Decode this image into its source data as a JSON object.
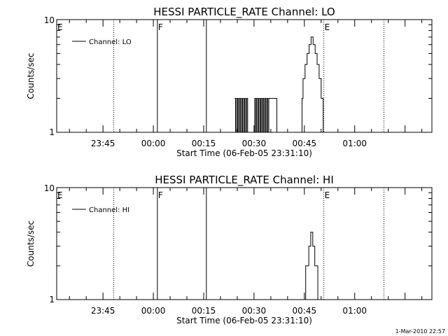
{
  "timestamp": "1-Mar-2010 22:57",
  "chart_data": [
    {
      "type": "line",
      "title": "HESSI PARTICLE_RATE Channel: LO",
      "xlabel": "Start Time (06-Feb-05 23:31:10)",
      "ylabel": "Counts/sec",
      "y_scale": "log",
      "ylim": [
        1,
        10
      ],
      "ytick_labels": [
        "1",
        "10"
      ],
      "xlim_minutes": [
        -28.8,
        83
      ],
      "xtick_labels": [
        "23:45",
        "00:00",
        "00:15",
        "00:30",
        "00:45",
        "01:00"
      ],
      "xtick_minutes": [
        -15,
        0,
        15,
        30,
        45,
        60
      ],
      "legend": {
        "label": "Channel: LO",
        "position": "top-left"
      },
      "markers": [
        {
          "label": "E",
          "minute": -28.8,
          "style": "dotted"
        },
        {
          "label": "",
          "minute": -11.8,
          "style": "dotted"
        },
        {
          "label": "F",
          "minute": 1.2,
          "style": "solid"
        },
        {
          "label": "",
          "minute": 15.8,
          "style": "solid"
        },
        {
          "label": "E",
          "minute": 50.8,
          "style": "dotted"
        },
        {
          "label": "",
          "minute": 68.7,
          "style": "dotted"
        }
      ],
      "series": [
        {
          "color": "#000000",
          "x": [
            24.2,
            24.5,
            24.8,
            25.1,
            25.4,
            25.7,
            26.0,
            26.3,
            26.6,
            26.9,
            27.2,
            27.5,
            27.8,
            28.1,
            28.4,
            28.7,
            29.0,
            29.3,
            29.6,
            29.9,
            30.2,
            30.5,
            30.8,
            31.1,
            31.4,
            31.7,
            32.0,
            32.3,
            32.6,
            32.9,
            33.2,
            33.5,
            33.8,
            34.1,
            34.4,
            34.7,
            35.0,
            35.3,
            35.6,
            35.9,
            36.2,
            36.5,
            36.8,
            37.1,
            37.4,
            37.7,
            38.0,
            38.3,
            38.6,
            38.9,
            39.2,
            39.5,
            39.8,
            40.1,
            40.4,
            40.7,
            41.0,
            41.3,
            41.6,
            41.9,
            42.2,
            42.5,
            42.8,
            43.1,
            43.4,
            43.7,
            44.0,
            44.3,
            44.6,
            44.9,
            45.2,
            45.5,
            45.8,
            46.1,
            46.4,
            46.7,
            47.0,
            47.3,
            47.6,
            47.9,
            48.2,
            48.5,
            48.8,
            49.1,
            49.4,
            49.7,
            50.0,
            50.3,
            50.6,
            50.9
          ],
          "y": [
            2,
            1,
            2,
            1,
            2,
            1,
            2,
            1,
            2,
            1,
            2,
            1,
            2,
            1,
            1,
            1,
            1,
            1,
            1,
            1,
            2,
            1,
            2,
            1,
            2,
            1,
            2,
            1,
            2,
            1,
            2,
            1,
            2,
            1,
            2,
            2,
            2,
            2,
            2,
            2,
            2,
            2,
            1,
            1,
            1,
            1,
            1,
            1,
            1,
            1,
            1,
            1,
            1,
            1,
            1,
            1,
            1,
            1,
            1,
            1,
            1,
            1,
            1,
            1,
            1,
            1,
            1,
            2,
            3,
            3,
            4,
            4,
            5,
            5,
            6,
            6,
            7,
            7,
            6,
            6,
            5,
            5,
            4,
            4,
            3,
            3,
            2,
            2,
            1,
            1
          ]
        }
      ]
    },
    {
      "type": "line",
      "title": "HESSI PARTICLE_RATE Channel: HI",
      "xlabel": "Start Time (06-Feb-05 23:31:10)",
      "ylabel": "Counts/sec",
      "y_scale": "log",
      "ylim": [
        1,
        10
      ],
      "ytick_labels": [
        "1",
        "10"
      ],
      "xlim_minutes": [
        -28.8,
        83
      ],
      "xtick_labels": [
        "23:45",
        "00:00",
        "00:15",
        "00:30",
        "00:45",
        "01:00"
      ],
      "xtick_minutes": [
        -15,
        0,
        15,
        30,
        45,
        60
      ],
      "legend": {
        "label": "Channel: HI",
        "position": "top-left"
      },
      "markers": [
        {
          "label": "E",
          "minute": -28.8,
          "style": "dotted"
        },
        {
          "label": "",
          "minute": -11.8,
          "style": "dotted"
        },
        {
          "label": "F",
          "minute": 1.2,
          "style": "solid"
        },
        {
          "label": "",
          "minute": 15.8,
          "style": "solid"
        },
        {
          "label": "E",
          "minute": 50.8,
          "style": "dotted"
        },
        {
          "label": "",
          "minute": 68.7,
          "style": "dotted"
        }
      ],
      "series": [
        {
          "color": "#000000",
          "x": [
            44.5,
            44.8,
            45.1,
            45.4,
            45.7,
            46.0,
            46.3,
            46.6,
            46.9,
            47.2,
            47.5,
            47.8,
            48.1,
            48.4,
            48.7,
            49.0,
            49.3,
            49.6,
            49.9,
            50.2,
            50.5
          ],
          "y": [
            1,
            1,
            1,
            2,
            2,
            2,
            3,
            3,
            4,
            4,
            3,
            3,
            2,
            2,
            2,
            1,
            1,
            1,
            1,
            1,
            1
          ]
        }
      ]
    }
  ]
}
